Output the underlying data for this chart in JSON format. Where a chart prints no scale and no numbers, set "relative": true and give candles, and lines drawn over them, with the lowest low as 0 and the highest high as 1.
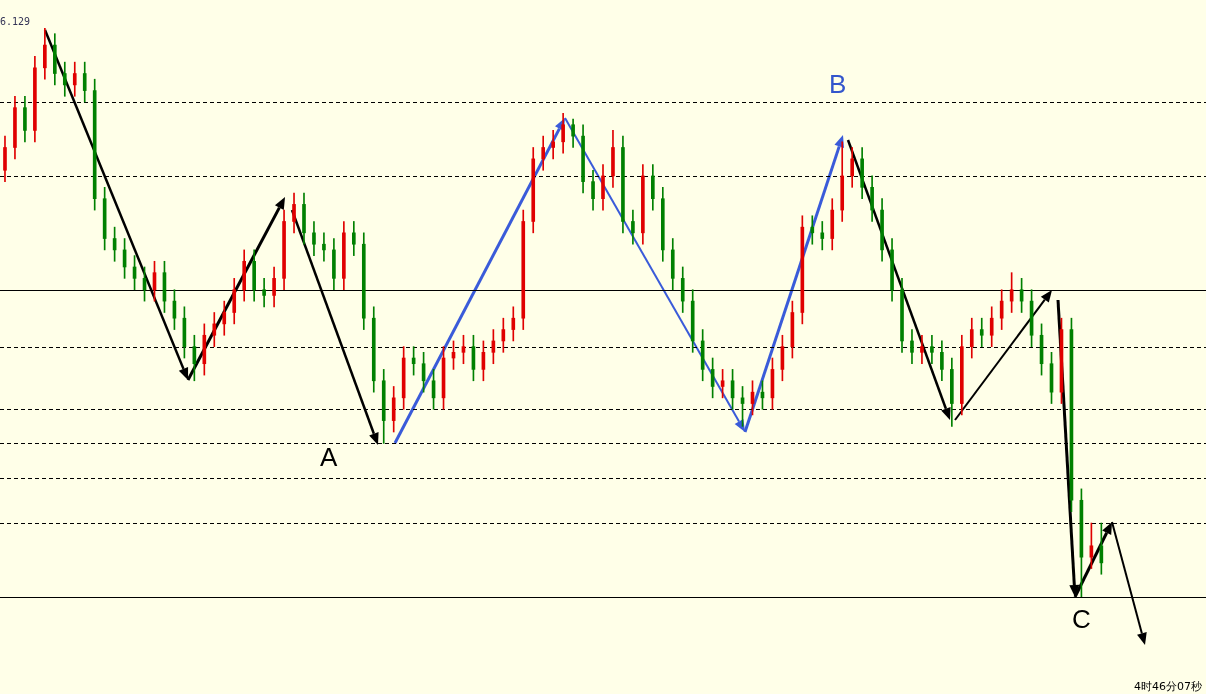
{
  "chart_data": {
    "type": "candlestick",
    "relative": true,
    "categories": [
      null,
      null,
      null,
      null,
      null,
      null,
      null,
      null,
      null,
      null,
      null,
      null,
      null,
      null,
      null,
      null,
      null,
      null,
      null,
      null,
      null,
      null,
      null,
      null,
      null,
      null,
      null,
      null,
      null,
      null,
      null,
      null,
      null,
      null,
      null,
      null,
      null,
      null,
      null,
      null,
      null,
      null,
      null,
      null,
      null,
      null,
      null,
      null,
      null,
      null,
      null,
      null,
      null,
      null,
      null,
      null,
      null,
      null,
      null,
      null,
      null,
      null,
      null,
      null,
      null,
      null,
      null,
      null,
      null,
      null,
      null,
      null,
      null,
      null,
      null,
      null,
      null,
      null,
      null,
      null,
      null,
      null,
      null,
      null,
      null,
      null,
      null,
      null,
      null,
      null,
      null,
      null,
      null,
      null,
      null,
      null,
      null,
      null,
      null,
      null,
      null,
      null,
      null,
      null,
      null,
      null,
      null,
      null,
      null,
      null,
      null,
      null,
      null,
      null,
      null,
      null,
      null,
      null,
      null,
      null,
      null
    ],
    "ohlc": [
      [
        0.75,
        0.81,
        0.73,
        0.79
      ],
      [
        0.79,
        0.88,
        0.77,
        0.86
      ],
      [
        0.86,
        0.88,
        0.8,
        0.82
      ],
      [
        0.82,
        0.95,
        0.8,
        0.93
      ],
      [
        0.93,
        1,
        0.91,
        0.97
      ],
      [
        0.97,
        0.99,
        0.9,
        0.92
      ],
      [
        0.92,
        0.94,
        0.88,
        0.9
      ],
      [
        0.9,
        0.94,
        0.88,
        0.92
      ],
      [
        0.92,
        0.94,
        0.87,
        0.89
      ],
      [
        0.89,
        0.91,
        0.68,
        0.7
      ],
      [
        0.7,
        0.72,
        0.61,
        0.63
      ],
      [
        0.63,
        0.65,
        0.59,
        0.61
      ],
      [
        0.61,
        0.63,
        0.56,
        0.58
      ],
      [
        0.58,
        0.6,
        0.54,
        0.56
      ],
      [
        0.56,
        0.58,
        0.52,
        0.54
      ],
      [
        0.54,
        0.59,
        0.52,
        0.57
      ],
      [
        0.57,
        0.59,
        0.5,
        0.52
      ],
      [
        0.52,
        0.54,
        0.47,
        0.49
      ],
      [
        0.49,
        0.51,
        0.42,
        0.44
      ],
      [
        0.44,
        0.46,
        0.38,
        0.41
      ],
      [
        0.41,
        0.48,
        0.39,
        0.46
      ],
      [
        0.46,
        0.5,
        0.44,
        0.48
      ],
      [
        0.48,
        0.52,
        0.46,
        0.5
      ],
      [
        0.5,
        0.56,
        0.48,
        0.54
      ],
      [
        0.54,
        0.61,
        0.52,
        0.59
      ],
      [
        0.59,
        0.61,
        0.52,
        0.54
      ],
      [
        0.54,
        0.56,
        0.51,
        0.53
      ],
      [
        0.53,
        0.58,
        0.51,
        0.56
      ],
      [
        0.56,
        0.68,
        0.54,
        0.66
      ],
      [
        0.66,
        0.71,
        0.64,
        0.69
      ],
      [
        0.69,
        0.71,
        0.62,
        0.64
      ],
      [
        0.64,
        0.66,
        0.6,
        0.62
      ],
      [
        0.62,
        0.64,
        0.59,
        0.61
      ],
      [
        0.61,
        0.63,
        0.54,
        0.56
      ],
      [
        0.56,
        0.66,
        0.54,
        0.64
      ],
      [
        0.64,
        0.66,
        0.6,
        0.62
      ],
      [
        0.62,
        0.64,
        0.47,
        0.49
      ],
      [
        0.49,
        0.51,
        0.36,
        0.38
      ],
      [
        0.38,
        0.4,
        0.27,
        0.31
      ],
      [
        0.31,
        0.37,
        0.29,
        0.35
      ],
      [
        0.35,
        0.44,
        0.33,
        0.42
      ],
      [
        0.42,
        0.44,
        0.39,
        0.41
      ],
      [
        0.41,
        0.43,
        0.36,
        0.38
      ],
      [
        0.38,
        0.4,
        0.33,
        0.35
      ],
      [
        0.35,
        0.44,
        0.33,
        0.42
      ],
      [
        0.42,
        0.45,
        0.4,
        0.43
      ],
      [
        0.43,
        0.46,
        0.41,
        0.44
      ],
      [
        0.44,
        0.46,
        0.38,
        0.4
      ],
      [
        0.4,
        0.45,
        0.38,
        0.43
      ],
      [
        0.43,
        0.47,
        0.41,
        0.45
      ],
      [
        0.45,
        0.49,
        0.43,
        0.47
      ],
      [
        0.47,
        0.51,
        0.45,
        0.49
      ],
      [
        0.49,
        0.68,
        0.47,
        0.66
      ],
      [
        0.66,
        0.79,
        0.64,
        0.77
      ],
      [
        0.77,
        0.81,
        0.75,
        0.79
      ],
      [
        0.79,
        0.82,
        0.77,
        0.8
      ],
      [
        0.8,
        0.85,
        0.78,
        0.83
      ],
      [
        0.83,
        0.84,
        0.79,
        0.81
      ],
      [
        0.81,
        0.83,
        0.71,
        0.73
      ],
      [
        0.73,
        0.75,
        0.68,
        0.7
      ],
      [
        0.7,
        0.76,
        0.68,
        0.74
      ],
      [
        0.74,
        0.82,
        0.72,
        0.79
      ],
      [
        0.79,
        0.81,
        0.64,
        0.66
      ],
      [
        0.66,
        0.68,
        0.62,
        0.64
      ],
      [
        0.64,
        0.76,
        0.62,
        0.74
      ],
      [
        0.74,
        0.76,
        0.68,
        0.7
      ],
      [
        0.7,
        0.72,
        0.59,
        0.61
      ],
      [
        0.61,
        0.63,
        0.54,
        0.56
      ],
      [
        0.56,
        0.58,
        0.5,
        0.52
      ],
      [
        0.52,
        0.54,
        0.43,
        0.45
      ],
      [
        0.45,
        0.47,
        0.38,
        0.4
      ],
      [
        0.4,
        0.42,
        0.35,
        0.37
      ],
      [
        0.37,
        0.4,
        0.35,
        0.38
      ],
      [
        0.38,
        0.4,
        0.33,
        0.35
      ],
      [
        0.35,
        0.37,
        0.3,
        0.34
      ],
      [
        0.34,
        0.38,
        0.32,
        0.36
      ],
      [
        0.36,
        0.38,
        0.33,
        0.35
      ],
      [
        0.35,
        0.42,
        0.33,
        0.4
      ],
      [
        0.4,
        0.46,
        0.38,
        0.44
      ],
      [
        0.44,
        0.52,
        0.42,
        0.5
      ],
      [
        0.5,
        0.67,
        0.48,
        0.65
      ],
      [
        0.65,
        0.67,
        0.62,
        0.64
      ],
      [
        0.64,
        0.66,
        0.61,
        0.63
      ],
      [
        0.63,
        0.7,
        0.61,
        0.68
      ],
      [
        0.68,
        0.8,
        0.66,
        0.74
      ],
      [
        0.74,
        0.79,
        0.72,
        0.77
      ],
      [
        0.77,
        0.79,
        0.7,
        0.72
      ],
      [
        0.72,
        0.74,
        0.66,
        0.68
      ],
      [
        0.68,
        0.7,
        0.59,
        0.61
      ],
      [
        0.61,
        0.63,
        0.52,
        0.54
      ],
      [
        0.54,
        0.56,
        0.43,
        0.45
      ],
      [
        0.45,
        0.47,
        0.41,
        0.43
      ],
      [
        0.43,
        0.46,
        0.41,
        0.44
      ],
      [
        0.44,
        0.46,
        0.41,
        0.43
      ],
      [
        0.43,
        0.45,
        0.38,
        0.4
      ],
      [
        0.4,
        0.42,
        0.3,
        0.34
      ],
      [
        0.34,
        0.46,
        0.32,
        0.44
      ],
      [
        0.44,
        0.49,
        0.42,
        0.47
      ],
      [
        0.47,
        0.49,
        0.44,
        0.46
      ],
      [
        0.46,
        0.51,
        0.44,
        0.49
      ],
      [
        0.49,
        0.54,
        0.47,
        0.52
      ],
      [
        0.52,
        0.57,
        0.5,
        0.54
      ],
      [
        0.54,
        0.56,
        0.5,
        0.52
      ],
      [
        0.52,
        0.54,
        0.44,
        0.46
      ],
      [
        0.46,
        0.48,
        0.39,
        0.41
      ],
      [
        0.41,
        0.43,
        0.34,
        0.36
      ],
      [
        0.36,
        0.49,
        0.34,
        0.47
      ],
      [
        0.47,
        0.49,
        0.15,
        0.17
      ],
      [
        0.17,
        0.19,
        0,
        0.07
      ],
      [
        0.07,
        0.13,
        0.05,
        0.09
      ],
      [
        0.09,
        0.13,
        0.04,
        0.06
      ],
      null,
      null,
      null,
      null,
      null,
      null,
      null,
      null,
      null,
      null
    ],
    "colors": [
      "#e00000",
      "#e00000",
      "#008000",
      "#e00000",
      "#e00000",
      "#008000",
      "#008000",
      "#e00000",
      "#008000",
      "#008000",
      "#008000",
      "#008000",
      "#008000",
      "#008000",
      "#008000",
      "#e00000",
      "#008000",
      "#008000",
      "#008000",
      "#008000",
      "#e00000",
      "#e00000",
      "#e00000",
      "#e00000",
      "#e00000",
      "#008000",
      "#008000",
      "#e00000",
      "#e00000",
      "#e00000",
      "#008000",
      "#008000",
      "#008000",
      "#008000",
      "#e00000",
      "#008000",
      "#008000",
      "#008000",
      "#008000",
      "#e00000",
      "#e00000",
      "#008000",
      "#008000",
      "#008000",
      "#e00000",
      "#e00000",
      "#e00000",
      "#008000",
      "#e00000",
      "#e00000",
      "#e00000",
      "#e00000",
      "#e00000",
      "#e00000",
      "#e00000",
      "#e00000",
      "#e00000",
      "#008000",
      "#008000",
      "#008000",
      "#e00000",
      "#e00000",
      "#008000",
      "#008000",
      "#e00000",
      "#008000",
      "#008000",
      "#008000",
      "#008000",
      "#008000",
      "#008000",
      "#008000",
      "#e00000",
      "#008000",
      "#008000",
      "#e00000",
      "#008000",
      "#e00000",
      "#e00000",
      "#e00000",
      "#e00000",
      "#008000",
      "#008000",
      "#e00000",
      "#e00000",
      "#e00000",
      "#008000",
      "#008000",
      "#008000",
      "#008000",
      "#008000",
      "#008000",
      "#e00000",
      "#008000",
      "#008000",
      "#008000",
      "#e00000",
      "#e00000",
      "#008000",
      "#e00000",
      "#e00000",
      "#e00000",
      "#008000",
      "#008000",
      "#008000",
      "#008000",
      "#e00000",
      "#008000",
      "#008000",
      "#e00000",
      "#008000",
      null,
      null,
      null,
      null,
      null,
      null,
      null,
      null,
      null,
      null
    ],
    "ref_lines": [
      {
        "axis": "y",
        "value": 0.87,
        "color": "#000000",
        "line_style": "dashed"
      },
      {
        "axis": "y",
        "value": 0.74,
        "color": "#000000",
        "line_style": "dashed"
      },
      {
        "axis": "y",
        "value": 0.54,
        "color": "#000000",
        "line_style": "solid"
      },
      {
        "axis": "y",
        "value": 0.44,
        "color": "#000000",
        "line_style": "dashed"
      },
      {
        "axis": "y",
        "value": 0.33,
        "color": "#000000",
        "line_style": "dashed"
      },
      {
        "axis": "y",
        "value": 0.27,
        "color": "#000000",
        "line_style": "dashed"
      },
      {
        "axis": "y",
        "value": 0.21,
        "color": "#000000",
        "line_style": "dashed"
      },
      {
        "axis": "y",
        "value": 0.13,
        "color": "#000000",
        "line_style": "dashed"
      },
      {
        "axis": "y",
        "value": 0,
        "color": "#000000",
        "line_style": "solid"
      }
    ],
    "annotations": [
      "6.129",
      {
        "text": "A",
        "y": 0.27
      },
      {
        "text": "B",
        "y": 0.8
      },
      {
        "text": "C",
        "y": 0
      },
      "4时46分07秒"
    ]
  }
}
